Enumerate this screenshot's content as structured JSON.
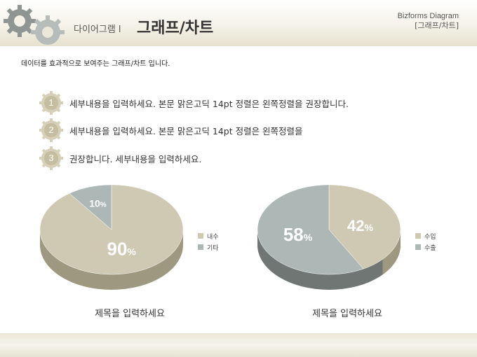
{
  "header": {
    "title_small": "다이어그램 l",
    "title_big": "그래프/차트",
    "brand": "Bizforms Diagram",
    "brand_sub": "[그래프/차트]"
  },
  "intro": "데이터를 효과적으로 보여주는 그래프/차트 입니다.",
  "bullets": [
    {
      "num": "1",
      "text": "세부내용을 입력하세요. 본문 맑은고딕 14pt 정렬은 왼쪽정렬을 권장합니다."
    },
    {
      "num": "2",
      "text": "세부내용을 입력하세요. 본문 맑은고딕 14pt 정렬은 왼쪽정렬을"
    },
    {
      "num": "3",
      "text": "권장합니다. 세부내용을 입력하세요."
    }
  ],
  "colors": {
    "beige": "#cfc9b3",
    "gray": "#adb7b5",
    "accent": "#c8c2a6"
  },
  "chart_data": [
    {
      "type": "pie",
      "title": "제목을 입력하세요",
      "categories": [
        "내수",
        "기타"
      ],
      "values": [
        90,
        10
      ],
      "labels": [
        "90",
        "10"
      ],
      "legend": "right"
    },
    {
      "type": "pie",
      "title": "제목을 입력하세요",
      "categories": [
        "수입",
        "수출"
      ],
      "values": [
        42,
        58
      ],
      "labels": [
        "42",
        "58"
      ],
      "legend": "right"
    }
  ]
}
